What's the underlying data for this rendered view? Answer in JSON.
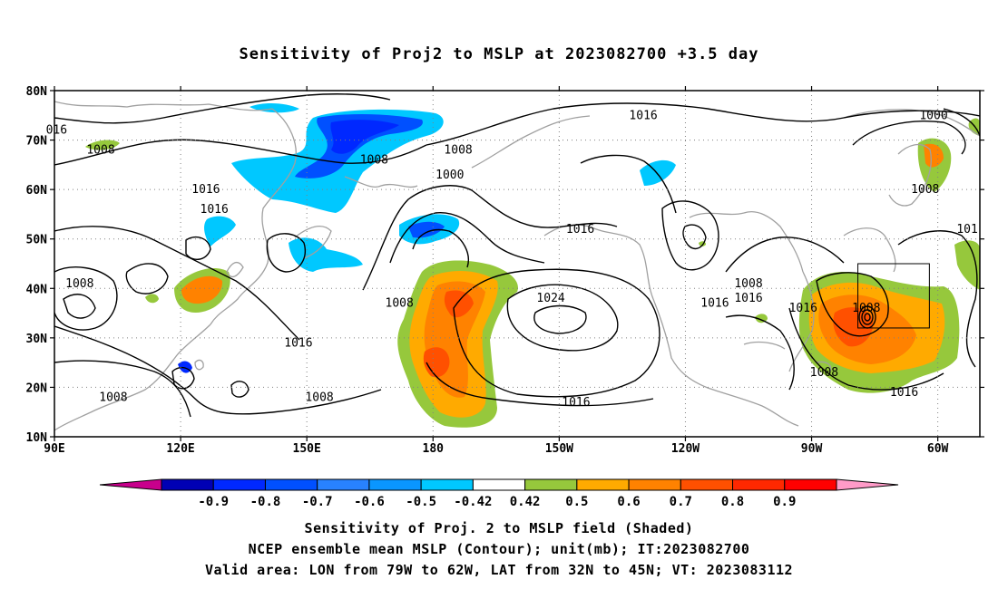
{
  "title": "Sensitivity of Proj2 to MSLP at 2023082700 +3.5 day",
  "map": {
    "lon_range": [
      90,
      310
    ],
    "lat_range": [
      10,
      80
    ],
    "lat_ticks": [
      {
        "lat": 80,
        "label": "80N"
      },
      {
        "lat": 70,
        "label": "70N"
      },
      {
        "lat": 60,
        "label": "60N"
      },
      {
        "lat": 50,
        "label": "50N"
      },
      {
        "lat": 40,
        "label": "40N"
      },
      {
        "lat": 30,
        "label": "30N"
      },
      {
        "lat": 20,
        "label": "20N"
      },
      {
        "lat": 10,
        "label": "10N"
      }
    ],
    "lon_ticks": [
      {
        "lon": 90,
        "label": "90E"
      },
      {
        "lon": 120,
        "label": "120E"
      },
      {
        "lon": 150,
        "label": "150E"
      },
      {
        "lon": 180,
        "label": "180"
      },
      {
        "lon": 210,
        "label": "150W"
      },
      {
        "lon": 240,
        "label": "120W"
      },
      {
        "lon": 270,
        "label": "90W"
      },
      {
        "lon": 300,
        "label": "60W"
      }
    ],
    "grid": "dotted",
    "valid_box": {
      "lon": [
        281,
        298
      ],
      "lat": [
        32,
        45
      ]
    },
    "contour_labels": [
      {
        "text": "016",
        "lon": 90.5,
        "lat": 72
      },
      {
        "text": "1008",
        "lon": 101,
        "lat": 68
      },
      {
        "text": "1008",
        "lon": 166,
        "lat": 66
      },
      {
        "text": "1008",
        "lon": 186,
        "lat": 68
      },
      {
        "text": "1016",
        "lon": 230,
        "lat": 75
      },
      {
        "text": "1000",
        "lon": 299,
        "lat": 75
      },
      {
        "text": "1000",
        "lon": 184,
        "lat": 63
      },
      {
        "text": "1016",
        "lon": 126,
        "lat": 60
      },
      {
        "text": "1016",
        "lon": 128,
        "lat": 56
      },
      {
        "text": "1008",
        "lon": 297,
        "lat": 60
      },
      {
        "text": "1016",
        "lon": 215,
        "lat": 52
      },
      {
        "text": "101",
        "lon": 307,
        "lat": 52
      },
      {
        "text": "1008",
        "lon": 96,
        "lat": 41
      },
      {
        "text": "1008",
        "lon": 172,
        "lat": 37
      },
      {
        "text": "1024",
        "lon": 208,
        "lat": 38
      },
      {
        "text": "1008",
        "lon": 255,
        "lat": 41
      },
      {
        "text": "1016",
        "lon": 255,
        "lat": 38
      },
      {
        "text": "1016",
        "lon": 247,
        "lat": 37
      },
      {
        "text": "1016",
        "lon": 268,
        "lat": 36
      },
      {
        "text": "1008",
        "lon": 283,
        "lat": 36
      },
      {
        "text": "1016",
        "lon": 148,
        "lat": 29
      },
      {
        "text": "1008",
        "lon": 104,
        "lat": 18
      },
      {
        "text": "1008",
        "lon": 153,
        "lat": 18
      },
      {
        "text": "1016",
        "lon": 214,
        "lat": 17
      },
      {
        "text": "1008",
        "lon": 273,
        "lat": 23
      },
      {
        "text": "1016",
        "lon": 292,
        "lat": 19
      }
    ]
  },
  "colorbar": {
    "colors": [
      "#c8008c",
      "#0000b4",
      "#0028ff",
      "#0050ff",
      "#2882ff",
      "#0a96ff",
      "#00c8ff",
      "#ffffff",
      "#96c83c",
      "#ffaa00",
      "#ff8200",
      "#ff5000",
      "#ff2800",
      "#ff0000",
      "#ff9bc8"
    ],
    "labels": [
      "-0.9",
      "-0.8",
      "-0.7",
      "-0.6",
      "-0.5",
      "-0.42",
      "0.42",
      "0.5",
      "0.6",
      "0.7",
      "0.8",
      "0.9"
    ]
  },
  "captions": [
    "Sensitivity of Proj. 2 to MSLP field (Shaded)",
    "NCEP ensemble mean MSLP (Contour); unit(mb); IT:2023082700",
    "Valid area: LON from 79W to 62W, LAT from 32N to 45N; VT: 2023083112"
  ]
}
